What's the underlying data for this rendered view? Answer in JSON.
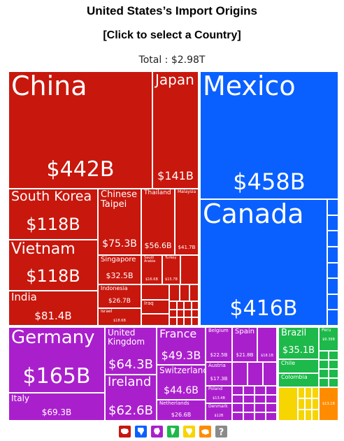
{
  "title": "United States’s Import Origins",
  "subtitle": "[Click to select a Country]",
  "total_label": "Total : $2.98T",
  "colors": {
    "asia": "#c8170d",
    "north_america": "#0a60ff",
    "europe": "#aa1fcc",
    "south_america": "#1db94a",
    "africa": "#f6d500",
    "oceania": "#ff8c00",
    "other": "#8a8a8a"
  },
  "chart_data": {
    "type": "treemap",
    "total": "$2.98T",
    "items": [
      {
        "name": "China",
        "value": "$442B",
        "region": "asia"
      },
      {
        "name": "Japan",
        "value": "$141B",
        "region": "asia"
      },
      {
        "name": "South Korea",
        "value": "$118B",
        "region": "asia"
      },
      {
        "name": "Vietnam",
        "value": "$118B",
        "region": "asia"
      },
      {
        "name": "Chinese Taipei",
        "value": "$75.3B",
        "region": "asia"
      },
      {
        "name": "Thailand",
        "value": "$56.6B",
        "region": "asia"
      },
      {
        "name": "Malaysia",
        "value": "$41.7B",
        "region": "asia"
      },
      {
        "name": "India",
        "value": "$81.4B",
        "region": "asia"
      },
      {
        "name": "Singapore",
        "value": "$32.5B",
        "region": "asia"
      },
      {
        "name": "Saudi Arabia",
        "value": "$16.6B",
        "region": "asia"
      },
      {
        "name": "Turkey",
        "value": "$15.7B",
        "region": "asia"
      },
      {
        "name": "Indonesia",
        "value": "$26.7B",
        "region": "asia"
      },
      {
        "name": "Israel",
        "value": "$18.6B",
        "region": "asia"
      },
      {
        "name": "Iraq",
        "value": "",
        "region": "asia"
      },
      {
        "name": "Mexico",
        "value": "$458B",
        "region": "north_america"
      },
      {
        "name": "Canada",
        "value": "$416B",
        "region": "north_america"
      },
      {
        "name": "Germany",
        "value": "$165B",
        "region": "europe"
      },
      {
        "name": "United Kingdom",
        "value": "$64.3B",
        "region": "europe"
      },
      {
        "name": "Ireland",
        "value": "$62.6B",
        "region": "europe"
      },
      {
        "name": "France",
        "value": "$49.3B",
        "region": "europe"
      },
      {
        "name": "Switzerland",
        "value": "$44.6B",
        "region": "europe"
      },
      {
        "name": "Italy",
        "value": "$69.3B",
        "region": "europe"
      },
      {
        "name": "Netherlands",
        "value": "$26.6B",
        "region": "europe"
      },
      {
        "name": "Belgium",
        "value": "$22.5B",
        "region": "europe"
      },
      {
        "name": "Spain",
        "value": "$21.8B",
        "region": "europe"
      },
      {
        "name": "Austria",
        "value": "$17.3B",
        "region": "europe"
      },
      {
        "name": "Poland",
        "value": "$13.4B",
        "region": "europe"
      },
      {
        "name": "Denmark",
        "value": "$12B",
        "region": "europe"
      },
      {
        "name": "",
        "value": "$18.1B",
        "region": "europe"
      },
      {
        "name": "Brazil",
        "value": "$35.1B",
        "region": "south_america"
      },
      {
        "name": "Chile",
        "value": "",
        "region": "south_america"
      },
      {
        "name": "Colombia",
        "value": "",
        "region": "south_america"
      },
      {
        "name": "Peru",
        "value": "$9.39B",
        "region": "south_america"
      },
      {
        "name": "",
        "value": "$13.1B",
        "region": "oceania"
      }
    ]
  },
  "legend": [
    {
      "icon": "asia-icon",
      "color": "#c8170d"
    },
    {
      "icon": "north-america-icon",
      "color": "#0a60ff"
    },
    {
      "icon": "europe-icon",
      "color": "#aa1fcc"
    },
    {
      "icon": "south-america-icon",
      "color": "#1db94a"
    },
    {
      "icon": "africa-icon",
      "color": "#f6d500"
    },
    {
      "icon": "oceania-icon",
      "color": "#ff8c00"
    },
    {
      "icon": "unknown-icon",
      "color": "#8a8a8a"
    }
  ]
}
